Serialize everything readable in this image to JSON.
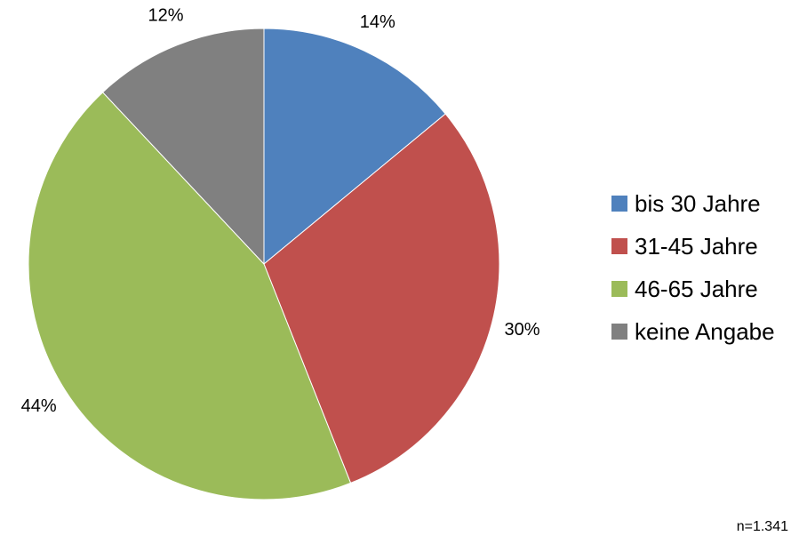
{
  "chart_data": {
    "type": "pie",
    "series": [
      {
        "name": "bis 30 Jahre",
        "value": 14,
        "label": "14%",
        "color": "#4F81BD"
      },
      {
        "name": "31-45 Jahre",
        "value": 30,
        "label": "30%",
        "color": "#C0504D"
      },
      {
        "name": "46-65 Jahre",
        "value": 44,
        "label": "44%",
        "color": "#9BBB59"
      },
      {
        "name": "keine Angabe",
        "value": 12,
        "label": "12%",
        "color": "#808080"
      }
    ],
    "legend_position": "right",
    "start_angle": "top (12 o'clock), clockwise"
  },
  "note": "n=1.341"
}
